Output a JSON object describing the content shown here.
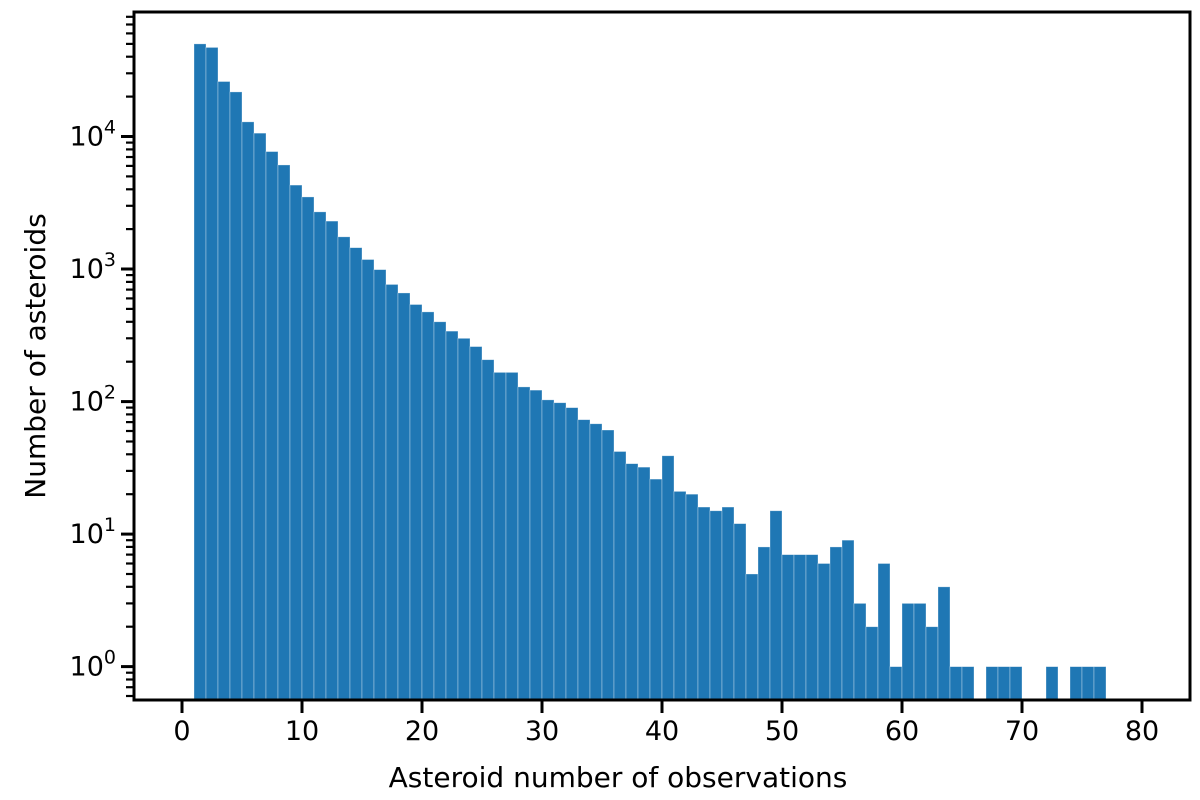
{
  "chart_data": {
    "type": "bar",
    "subtype": "histogram",
    "title": "",
    "xlabel": "Asteroid number of observations",
    "ylabel": "Number of asteroids",
    "x_scale": "linear",
    "y_scale": "log",
    "grid": false,
    "legend": null,
    "bar_color": "#1f77b4",
    "bar_edge_color": "rgba(255,255,255,0.45)",
    "axis_color": "#000000",
    "background": "#ffffff",
    "xlim": [
      -4,
      84
    ],
    "ylim": [
      0.56,
      87000
    ],
    "x_ticks": [
      0,
      10,
      20,
      30,
      40,
      50,
      60,
      70,
      80
    ],
    "y_tick_exponents": [
      0,
      1,
      2,
      3,
      4
    ],
    "y_tick_base": "10",
    "bin_start": 1,
    "bin_width": 1,
    "counts": [
      50000,
      47000,
      26000,
      21700,
      12900,
      10600,
      7700,
      6100,
      4300,
      3500,
      2700,
      2300,
      1750,
      1450,
      1180,
      990,
      765,
      660,
      540,
      475,
      400,
      340,
      300,
      260,
      207,
      166,
      166,
      129,
      122,
      103,
      98,
      90,
      73,
      68,
      61,
      42,
      34,
      32,
      26,
      39,
      21,
      20,
      16,
      15,
      16,
      12,
      5,
      8,
      15,
      7,
      7,
      7,
      6,
      8,
      9,
      3,
      2,
      6,
      1,
      3,
      3,
      2,
      4,
      1,
      1,
      0,
      1,
      1,
      1,
      0,
      0,
      1,
      0,
      1,
      1,
      1
    ]
  }
}
